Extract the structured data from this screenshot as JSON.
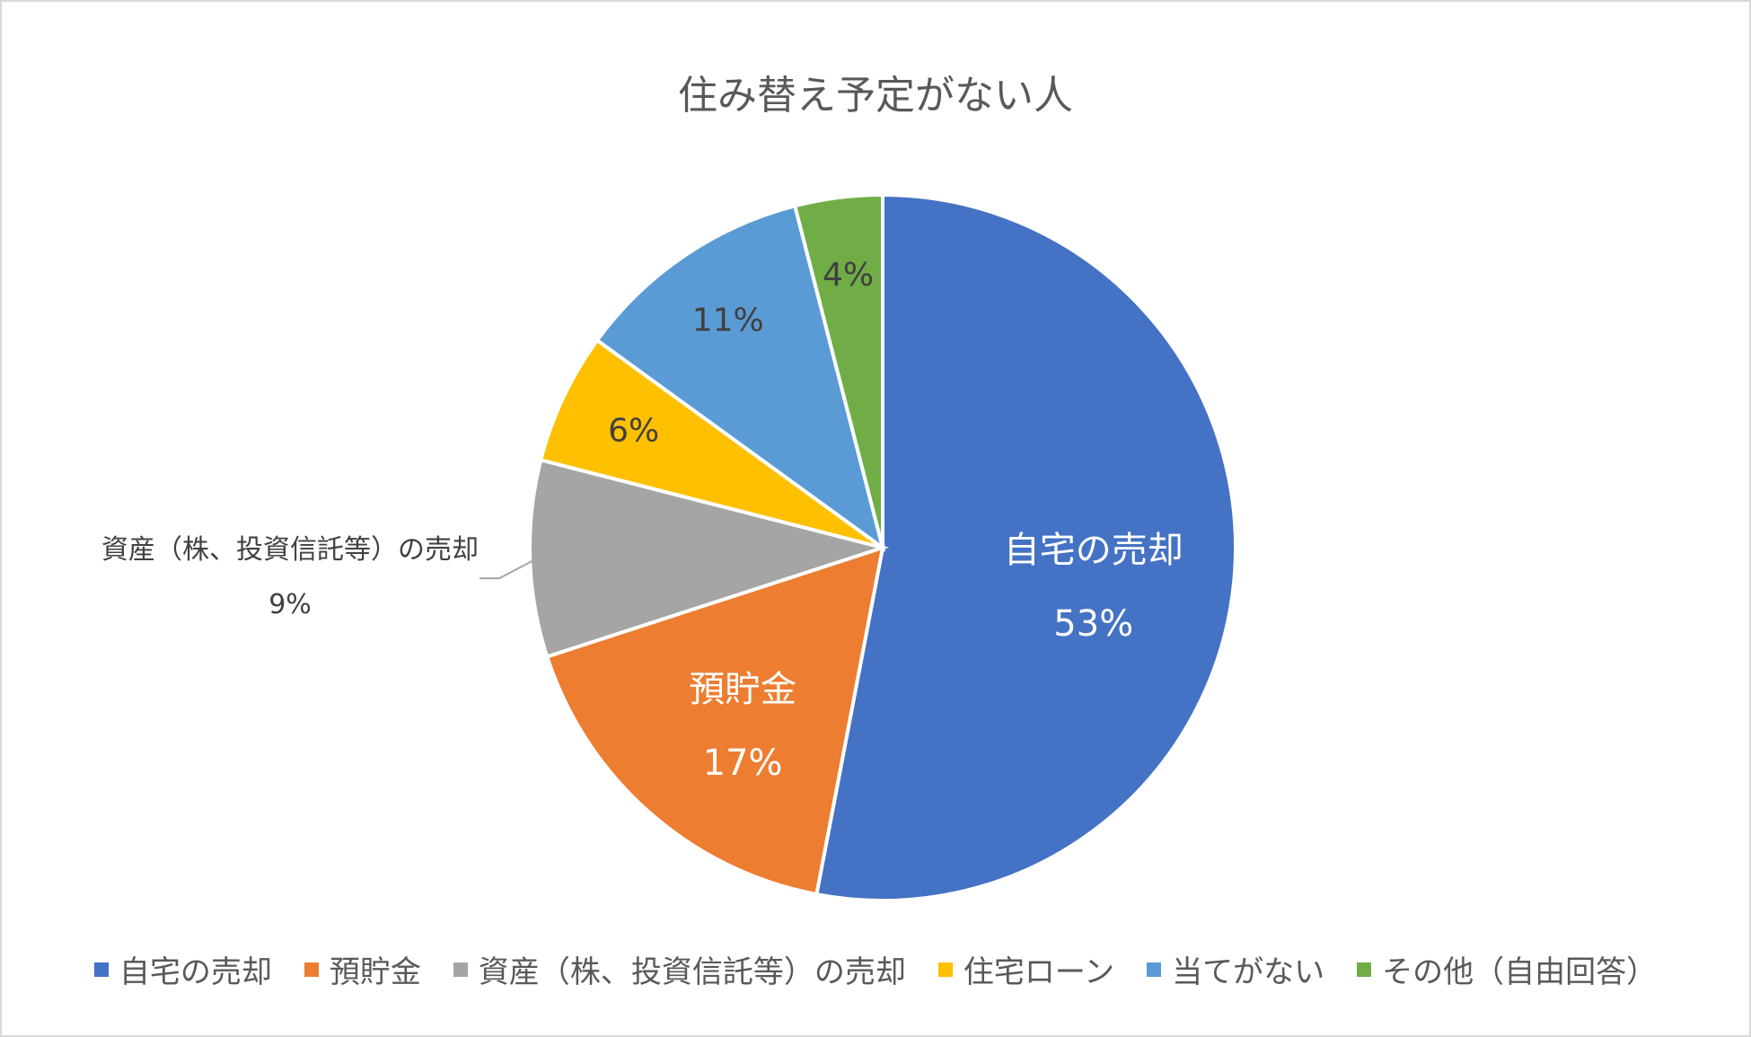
{
  "chart_data": {
    "type": "pie",
    "title": "住み替え予定がない人",
    "slices": [
      {
        "label": "自宅の売却",
        "value": 53,
        "value_label": "53%",
        "color": "#4472C4",
        "show_label_on_chart": true,
        "label_color": "#ffffff"
      },
      {
        "label": "預貯金",
        "value": 17,
        "value_label": "17%",
        "color": "#ED7D31",
        "show_label_on_chart": true,
        "label_color": "#ffffff"
      },
      {
        "label": "資産（株、投資信託等）の売却",
        "value": 9,
        "value_label": "9%",
        "color": "#A5A5A5",
        "show_label_on_chart": true,
        "label_color": "#404040",
        "callout": true
      },
      {
        "label": "住宅ローン",
        "value": 6,
        "value_label": "6%",
        "color": "#FFC000",
        "show_label_on_chart": false,
        "label_color": "#404040"
      },
      {
        "label": "当てがない",
        "value": 11,
        "value_label": "11%",
        "color": "#5B9BD5",
        "show_label_on_chart": false,
        "label_color": "#404040"
      },
      {
        "label": "その他（自由回答）",
        "value": 4,
        "value_label": "4%",
        "color": "#70AD47",
        "show_label_on_chart": false,
        "label_color": "#404040"
      }
    ],
    "legend_position": "bottom"
  }
}
